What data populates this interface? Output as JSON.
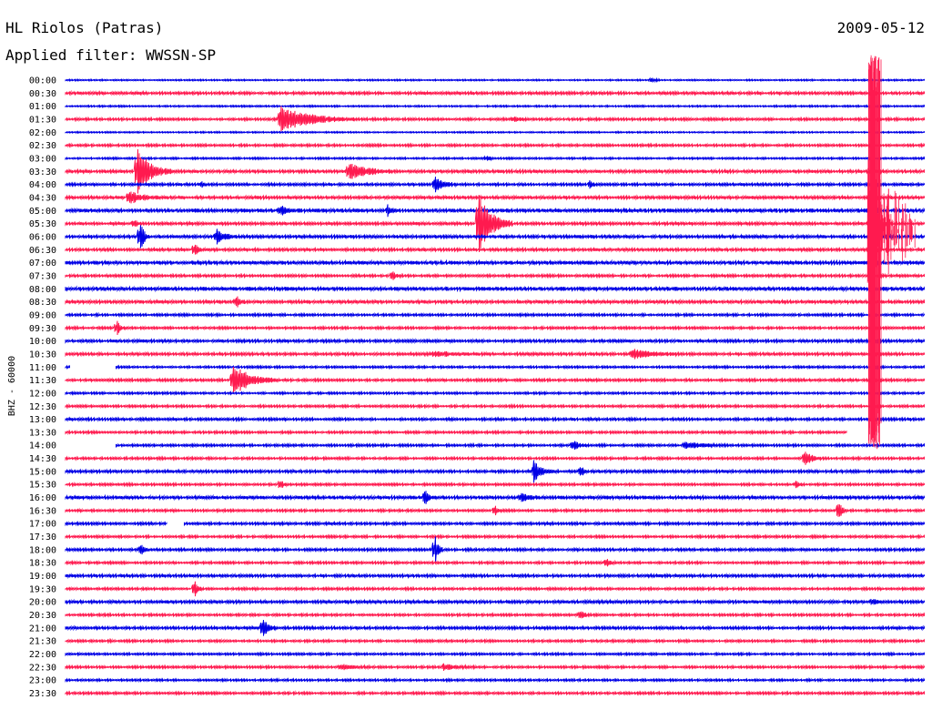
{
  "header": {
    "station": "HL Riolos (Patras)",
    "date": "2009-05-12",
    "filter": "Applied filter: WWSSN-SP"
  },
  "chart_data": {
    "type": "line",
    "title": "HL Riolos (Patras)",
    "subtitle": "Applied filter: WWSSN-SP",
    "ylabel": "BHZ - 60000",
    "row_colors": [
      "#0000e6",
      "#ff1a4f"
    ],
    "rows": [
      "00:00",
      "00:30",
      "01:00",
      "01:30",
      "02:00",
      "02:30",
      "03:00",
      "03:30",
      "04:00",
      "04:30",
      "05:00",
      "05:30",
      "06:00",
      "06:30",
      "07:00",
      "07:30",
      "08:00",
      "08:30",
      "09:00",
      "09:30",
      "10:00",
      "10:30",
      "11:00",
      "11:30",
      "12:00",
      "12:30",
      "13:00",
      "13:30",
      "14:00",
      "14:30",
      "15:00",
      "15:30",
      "16:00",
      "16:30",
      "17:00",
      "17:30",
      "18:00",
      "18:30",
      "19:00",
      "19:30",
      "20:00",
      "20:30",
      "21:00",
      "21:30",
      "22:00",
      "22:30",
      "23:00",
      "23:30"
    ],
    "noise": [
      0.6,
      1.2,
      0.7,
      1.0,
      0.6,
      1.0,
      0.8,
      1.3,
      1.1,
      1.3,
      1.6,
      1.2,
      1.3,
      1.2,
      1.5,
      1.1,
      1.6,
      1.4,
      1.0,
      1.0,
      1.2,
      1.2,
      0.9,
      1.1,
      0.9,
      1.0,
      1.1,
      1.0,
      1.0,
      1.0,
      1.2,
      1.0,
      1.4,
      1.0,
      1.1,
      1.0,
      1.1,
      1.0,
      1.2,
      1.0,
      1.3,
      1.0,
      1.2,
      1.0,
      0.9,
      1.0,
      0.9,
      1.0
    ],
    "gaps": [
      {
        "row": "11:00",
        "from": 0.006,
        "to": 0.058
      },
      {
        "row": "13:30",
        "from": 0.91,
        "to": 1.0
      },
      {
        "row": "14:00",
        "from": 0.0,
        "to": 0.058
      },
      {
        "row": "17:00",
        "from": 0.118,
        "to": 0.138
      }
    ],
    "events": [
      {
        "row": "00:00",
        "t": 0.682,
        "amp": 3,
        "dur": 0.01
      },
      {
        "row": "01:30",
        "t": 0.25,
        "amp": 14,
        "dur": 0.09
      },
      {
        "row": "01:30",
        "t": 0.52,
        "amp": 3,
        "dur": 0.02
      },
      {
        "row": "03:00",
        "t": 0.49,
        "amp": 3,
        "dur": 0.01
      },
      {
        "row": "03:30",
        "t": 0.084,
        "amp": 24,
        "dur": 0.04
      },
      {
        "row": "03:30",
        "t": 0.33,
        "amp": 10,
        "dur": 0.05
      },
      {
        "row": "04:00",
        "t": 0.43,
        "amp": 10,
        "dur": 0.025
      },
      {
        "row": "04:00",
        "t": 0.158,
        "amp": 4,
        "dur": 0.01
      },
      {
        "row": "04:00",
        "t": 0.61,
        "amp": 4,
        "dur": 0.01
      },
      {
        "row": "04:30",
        "t": 0.074,
        "amp": 7,
        "dur": 0.04
      },
      {
        "row": "05:00",
        "t": 0.25,
        "amp": 5,
        "dur": 0.02
      },
      {
        "row": "05:00",
        "t": 0.375,
        "amp": 6,
        "dur": 0.01
      },
      {
        "row": "05:00",
        "t": 0.94,
        "amp": 14,
        "dur": 0.01
      },
      {
        "row": "05:30",
        "t": 0.48,
        "amp": 36,
        "dur": 0.04
      },
      {
        "row": "05:30",
        "t": 0.08,
        "amp": 4,
        "dur": 0.01
      },
      {
        "row": "06:00",
        "t": 0.087,
        "amp": 18,
        "dur": 0.01
      },
      {
        "row": "06:00",
        "t": 0.175,
        "amp": 9,
        "dur": 0.025
      },
      {
        "row": "06:30",
        "t": 0.15,
        "amp": 8,
        "dur": 0.01
      },
      {
        "row": "07:30",
        "t": 0.38,
        "amp": 7,
        "dur": 0.01
      },
      {
        "row": "08:30",
        "t": 0.2,
        "amp": 6,
        "dur": 0.01
      },
      {
        "row": "09:30",
        "t": 0.06,
        "amp": 8,
        "dur": 0.01
      },
      {
        "row": "10:30",
        "t": 0.66,
        "amp": 5,
        "dur": 0.06
      },
      {
        "row": "10:30",
        "t": 0.43,
        "amp": 3,
        "dur": 0.05
      },
      {
        "row": "11:30",
        "t": 0.195,
        "amp": 18,
        "dur": 0.05
      },
      {
        "row": "14:00",
        "t": 0.59,
        "amp": 6,
        "dur": 0.02
      },
      {
        "row": "14:00",
        "t": 0.72,
        "amp": 4,
        "dur": 0.05
      },
      {
        "row": "14:30",
        "t": 0.86,
        "amp": 10,
        "dur": 0.02
      },
      {
        "row": "15:00",
        "t": 0.545,
        "amp": 12,
        "dur": 0.025
      },
      {
        "row": "15:00",
        "t": 0.6,
        "amp": 7,
        "dur": 0.01
      },
      {
        "row": "15:30",
        "t": 0.25,
        "amp": 6,
        "dur": 0.01
      },
      {
        "row": "15:30",
        "t": 0.85,
        "amp": 4,
        "dur": 0.01
      },
      {
        "row": "16:00",
        "t": 0.418,
        "amp": 10,
        "dur": 0.01
      },
      {
        "row": "16:00",
        "t": 0.53,
        "amp": 5,
        "dur": 0.02
      },
      {
        "row": "16:30",
        "t": 0.9,
        "amp": 14,
        "dur": 0.01
      },
      {
        "row": "16:30",
        "t": 0.5,
        "amp": 5,
        "dur": 0.01
      },
      {
        "row": "18:00",
        "t": 0.43,
        "amp": 18,
        "dur": 0.01
      },
      {
        "row": "18:00",
        "t": 0.088,
        "amp": 6,
        "dur": 0.01
      },
      {
        "row": "18:30",
        "t": 0.63,
        "amp": 5,
        "dur": 0.01
      },
      {
        "row": "19:30",
        "t": 0.15,
        "amp": 10,
        "dur": 0.01
      },
      {
        "row": "20:00",
        "t": 0.94,
        "amp": 4,
        "dur": 0.01
      },
      {
        "row": "20:30",
        "t": 0.6,
        "amp": 6,
        "dur": 0.01
      },
      {
        "row": "21:00",
        "t": 0.23,
        "amp": 11,
        "dur": 0.015
      },
      {
        "row": "22:30",
        "t": 0.32,
        "amp": 3,
        "dur": 0.04
      },
      {
        "row": "22:30",
        "t": 0.44,
        "amp": 3,
        "dur": 0.04
      }
    ],
    "big_event": {
      "start_row": "00:00",
      "end_row": "14:00",
      "t": 0.942,
      "color": "#ff1a4f"
    }
  }
}
